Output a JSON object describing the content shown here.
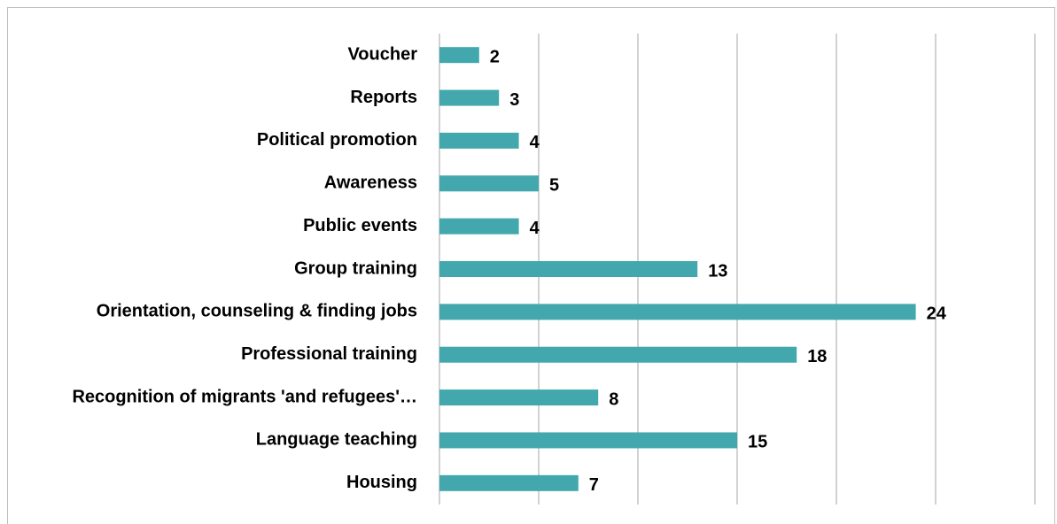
{
  "chart_data": {
    "type": "bar",
    "orientation": "horizontal",
    "categories": [
      "Voucher",
      "Reports",
      "Political promotion",
      "Awareness",
      "Public events",
      "Group training",
      "Orientation, counseling & finding jobs",
      "Professional training",
      "Recognition of migrants 'and refugees'…",
      "Language teaching",
      "Housing"
    ],
    "values": [
      2,
      3,
      4,
      5,
      4,
      13,
      24,
      18,
      8,
      15,
      7
    ],
    "color": "#42a8ad",
    "xlim": [
      0,
      30
    ],
    "xticks": [
      0,
      5,
      10,
      15,
      20,
      25,
      30
    ],
    "grid": true
  }
}
